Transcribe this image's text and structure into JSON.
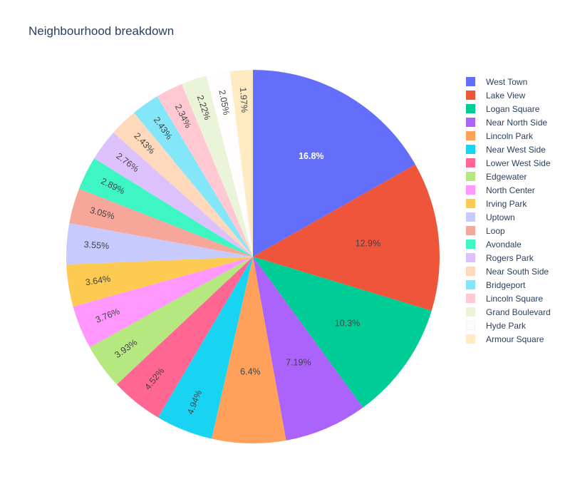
{
  "chart_data": {
    "type": "pie",
    "title": "Neighbourhood breakdown",
    "labels": [
      "West Town",
      "Lake View",
      "Logan Square",
      "Near North Side",
      "Lincoln Park",
      "Near West Side",
      "Lower West Side",
      "Edgewater",
      "North Center",
      "Irving Park",
      "Uptown",
      "Loop",
      "Avondale",
      "Rogers Park",
      "Near South Side",
      "Bridgeport",
      "Lincoln Square",
      "Grand Boulevard",
      "Hyde Park",
      "Armour Square"
    ],
    "values": [
      16.8,
      12.9,
      10.3,
      7.19,
      6.4,
      4.94,
      4.52,
      3.93,
      3.76,
      3.64,
      3.55,
      3.05,
      2.89,
      2.76,
      2.43,
      2.43,
      2.34,
      2.22,
      2.05,
      1.97
    ],
    "value_labels": [
      "16.8%",
      "12.9%",
      "10.3%",
      "7.19%",
      "6.4%",
      "4.94%",
      "4.52%",
      "3.93%",
      "3.76%",
      "3.64%",
      "3.55%",
      "3.05%",
      "2.89%",
      "2.76%",
      "2.43%",
      "2.43%",
      "2.34%",
      "2.22%",
      "2.05%",
      "1.97%"
    ],
    "colors": [
      "#636efa",
      "#EF553B",
      "#00cc96",
      "#ab63fa",
      "#FFA15A",
      "#19d3f3",
      "#FF6692",
      "#B6E880",
      "#FF97FF",
      "#FECB52",
      "#c6cafd",
      "#f7a799",
      "#3ef6c3",
      "#ddc1fc",
      "#fed9bc",
      "#83e7f9",
      "#ffc8d2",
      "#e9f4d8",
      "#fffcfe",
      "#ffeac2"
    ],
    "label_colors": [
      "#ffffff",
      "#444444",
      "#444444",
      "#444444",
      "#444444",
      "#444444",
      "#444444",
      "#444444",
      "#444444",
      "#444444",
      "#444444",
      "#444444",
      "#444444",
      "#444444",
      "#444444",
      "#444444",
      "#444444",
      "#444444",
      "#444444",
      "#444444"
    ],
    "direction": "clockwise",
    "start_angle_deg": 90,
    "legend_position": "right"
  }
}
